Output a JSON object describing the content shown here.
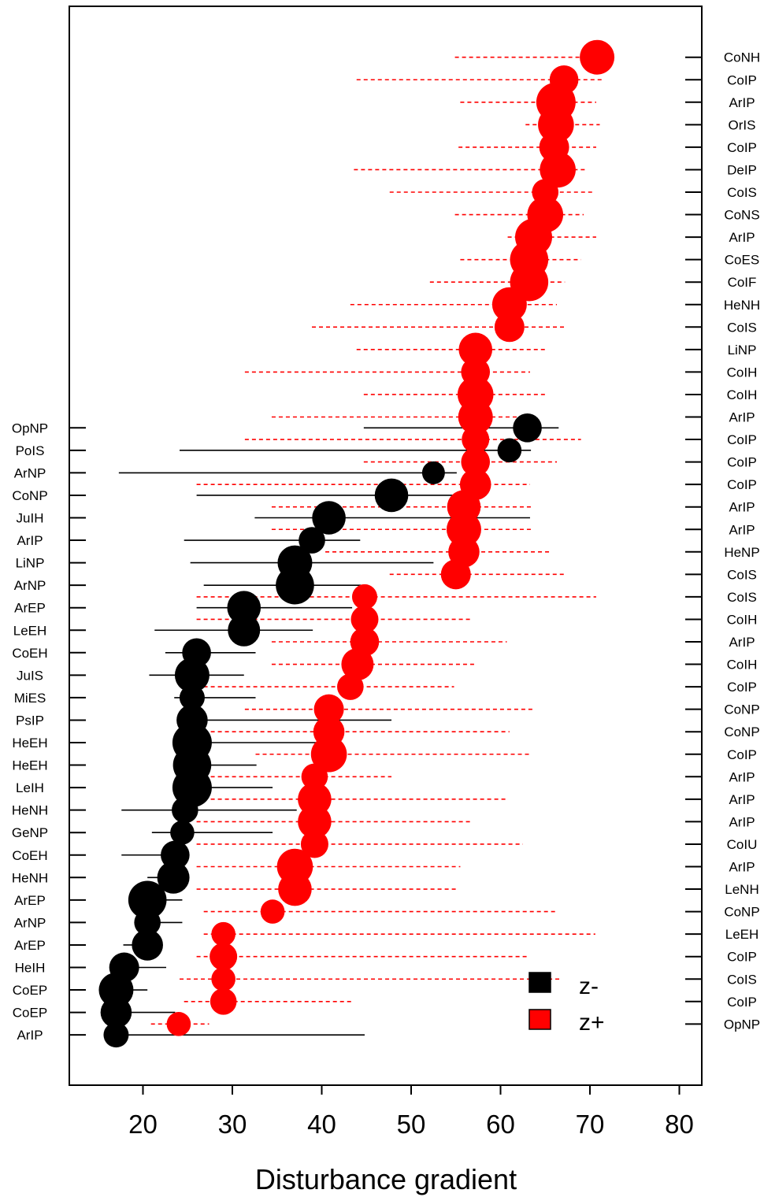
{
  "chart_data": {
    "type": "scatter",
    "xlabel": "Disturbance gradient",
    "xlim": [
      12,
      83
    ],
    "xticks": [
      20,
      30,
      40,
      50,
      60,
      70,
      80
    ],
    "colors": {
      "z_minus": "#000000",
      "z_plus": "#ff0000"
    },
    "legend": {
      "position": "bottom-right",
      "entries": [
        "z-",
        "z+"
      ]
    },
    "series": [
      {
        "name": "z-",
        "line_style": "solid",
        "points": [
          {
            "label": "OpNP",
            "x": 63.0,
            "lo": 44.7,
            "hi": 66.5,
            "size": 0.55
          },
          {
            "label": "PoIS",
            "x": 61.0,
            "lo": 24.1,
            "hi": 63.4,
            "size": 0.35
          },
          {
            "label": "ArNP",
            "x": 52.5,
            "lo": 17.3,
            "hi": 55.1,
            "size": 0.3
          },
          {
            "label": "CoNP",
            "x": 47.8,
            "lo": 26.0,
            "hi": 57.0,
            "size": 0.75
          },
          {
            "label": "JuIH",
            "x": 40.8,
            "lo": 32.5,
            "hi": 63.3,
            "size": 0.75
          },
          {
            "label": "ArIP",
            "x": 38.9,
            "lo": 24.6,
            "hi": 44.3,
            "size": 0.45
          },
          {
            "label": "LiNP",
            "x": 37.0,
            "lo": 25.3,
            "hi": 52.5,
            "size": 0.8
          },
          {
            "label": "ArNP",
            "x": 37.0,
            "lo": 26.8,
            "hi": 44.4,
            "size": 0.95
          },
          {
            "label": "ArEP",
            "x": 31.3,
            "lo": 26.0,
            "hi": 43.4,
            "size": 0.75
          },
          {
            "label": "LeEH",
            "x": 31.3,
            "lo": 21.3,
            "hi": 39.0,
            "size": 0.7
          },
          {
            "label": "CoEH",
            "x": 26.0,
            "lo": 22.5,
            "hi": 32.6,
            "size": 0.55
          },
          {
            "label": "JuIS",
            "x": 25.5,
            "lo": 20.7,
            "hi": 31.3,
            "size": 0.8
          },
          {
            "label": "MiES",
            "x": 25.5,
            "lo": 23.5,
            "hi": 32.6,
            "size": 0.4
          },
          {
            "label": "PsIP",
            "x": 25.5,
            "lo": 24.5,
            "hi": 47.8,
            "size": 0.65
          },
          {
            "label": "HeEH",
            "x": 25.5,
            "lo": 24.7,
            "hi": 39.6,
            "size": 1.0
          },
          {
            "label": "HeEH",
            "x": 25.5,
            "lo": 23.5,
            "hi": 32.7,
            "size": 0.95
          },
          {
            "label": "LeIH",
            "x": 25.5,
            "lo": 23.5,
            "hi": 34.5,
            "size": 1.0
          },
          {
            "label": "HeNH",
            "x": 24.7,
            "lo": 17.6,
            "hi": 37.2,
            "size": 0.45
          },
          {
            "label": "GeNP",
            "x": 24.4,
            "lo": 21.0,
            "hi": 34.5,
            "size": 0.35
          },
          {
            "label": "CoEH",
            "x": 23.6,
            "lo": 17.6,
            "hi": 24.4,
            "size": 0.55
          },
          {
            "label": "HeNH",
            "x": 23.4,
            "lo": 20.5,
            "hi": 24.6,
            "size": 0.7
          },
          {
            "label": "ArEP",
            "x": 20.5,
            "lo": 20.5,
            "hi": 24.4,
            "size": 0.95
          },
          {
            "label": "ArNP",
            "x": 20.5,
            "lo": 20.3,
            "hi": 24.4,
            "size": 0.45
          },
          {
            "label": "ArEP",
            "x": 20.5,
            "lo": 17.8,
            "hi": 20.5,
            "size": 0.65
          },
          {
            "label": "HeIH",
            "x": 17.9,
            "lo": 17.9,
            "hi": 22.6,
            "size": 0.6
          },
          {
            "label": "CoEP",
            "x": 17.0,
            "lo": 17.0,
            "hi": 20.5,
            "size": 0.8
          },
          {
            "label": "CoEP",
            "x": 17.0,
            "lo": 17.0,
            "hi": 23.6,
            "size": 0.65
          },
          {
            "label": "ArIP",
            "x": 17.0,
            "lo": 17.0,
            "hi": 44.8,
            "size": 0.4
          }
        ]
      },
      {
        "name": "z+",
        "line_style": "dashed",
        "points": [
          {
            "label": "CoNH",
            "x": 70.8,
            "lo": 54.9,
            "hi": 70.8,
            "size": 0.8
          },
          {
            "label": "CoIP",
            "x": 67.1,
            "lo": 43.9,
            "hi": 71.3,
            "size": 0.55
          },
          {
            "label": "ArIP",
            "x": 66.2,
            "lo": 55.5,
            "hi": 70.7,
            "size": 1.0
          },
          {
            "label": "OrIS",
            "x": 66.2,
            "lo": 62.8,
            "hi": 71.1,
            "size": 0.85
          },
          {
            "label": "CoIP",
            "x": 66.0,
            "lo": 55.3,
            "hi": 70.7,
            "size": 0.6
          },
          {
            "label": "DeIP",
            "x": 66.4,
            "lo": 43.6,
            "hi": 69.5,
            "size": 0.85
          },
          {
            "label": "CoIS",
            "x": 65.0,
            "lo": 47.6,
            "hi": 70.5,
            "size": 0.45
          },
          {
            "label": "CoNS",
            "x": 65.0,
            "lo": 54.9,
            "hi": 69.3,
            "size": 0.85
          },
          {
            "label": "ArIP",
            "x": 63.7,
            "lo": 60.8,
            "hi": 70.7,
            "size": 0.9
          },
          {
            "label": "CoES",
            "x": 63.2,
            "lo": 55.5,
            "hi": 69.0,
            "size": 0.95
          },
          {
            "label": "CoIF",
            "x": 63.2,
            "lo": 52.1,
            "hi": 67.2,
            "size": 0.95
          },
          {
            "label": "HeNH",
            "x": 61.0,
            "lo": 43.2,
            "hi": 66.3,
            "size": 0.8
          },
          {
            "label": "CoIS",
            "x": 61.0,
            "lo": 38.9,
            "hi": 67.2,
            "size": 0.6
          },
          {
            "label": "LiNP",
            "x": 57.2,
            "lo": 43.9,
            "hi": 65.0,
            "size": 0.75
          },
          {
            "label": "CoIH",
            "x": 57.2,
            "lo": 31.4,
            "hi": 63.3,
            "size": 0.55
          },
          {
            "label": "CoIH",
            "x": 57.2,
            "lo": 44.7,
            "hi": 65.0,
            "size": 0.85
          },
          {
            "label": "ArIP",
            "x": 57.2,
            "lo": 34.4,
            "hi": 63.3,
            "size": 0.8
          },
          {
            "label": "CoIP",
            "x": 57.2,
            "lo": 31.4,
            "hi": 69.0,
            "size": 0.5
          },
          {
            "label": "CoIP",
            "x": 57.2,
            "lo": 44.7,
            "hi": 66.3,
            "size": 0.55
          },
          {
            "label": "CoIP",
            "x": 57.2,
            "lo": 26.0,
            "hi": 63.3,
            "size": 0.65
          },
          {
            "label": "ArIP",
            "x": 55.9,
            "lo": 34.4,
            "hi": 63.4,
            "size": 0.75
          },
          {
            "label": "ArIP",
            "x": 55.9,
            "lo": 34.4,
            "hi": 63.4,
            "size": 0.8
          },
          {
            "label": "HeNP",
            "x": 55.9,
            "lo": 40.4,
            "hi": 65.5,
            "size": 0.65
          },
          {
            "label": "CoIS",
            "x": 55.0,
            "lo": 47.6,
            "hi": 67.2,
            "size": 0.6
          },
          {
            "label": "CoIS",
            "x": 44.8,
            "lo": 26.0,
            "hi": 70.7,
            "size": 0.4
          },
          {
            "label": "CoIH",
            "x": 44.8,
            "lo": 26.0,
            "hi": 56.8,
            "size": 0.5
          },
          {
            "label": "ArIP",
            "x": 44.8,
            "lo": 34.4,
            "hi": 60.7,
            "size": 0.55
          },
          {
            "label": "CoIH",
            "x": 44.0,
            "lo": 34.4,
            "hi": 57.3,
            "size": 0.7
          },
          {
            "label": "CoIP",
            "x": 43.2,
            "lo": 26.0,
            "hi": 54.8,
            "size": 0.45
          },
          {
            "label": "CoNP",
            "x": 40.8,
            "lo": 31.4,
            "hi": 63.6,
            "size": 0.6
          },
          {
            "label": "CoNP",
            "x": 40.8,
            "lo": 26.0,
            "hi": 61.0,
            "size": 0.65
          },
          {
            "label": "CoIP",
            "x": 40.8,
            "lo": 32.6,
            "hi": 63.4,
            "size": 0.85
          },
          {
            "label": "ArIP",
            "x": 39.2,
            "lo": 26.0,
            "hi": 47.8,
            "size": 0.45
          },
          {
            "label": "ArIP",
            "x": 39.2,
            "lo": 26.0,
            "hi": 60.7,
            "size": 0.75
          },
          {
            "label": "ArIP",
            "x": 39.2,
            "lo": 26.0,
            "hi": 56.8,
            "size": 0.75
          },
          {
            "label": "CoIU",
            "x": 39.2,
            "lo": 26.0,
            "hi": 62.5,
            "size": 0.5
          },
          {
            "label": "ArIP",
            "x": 37.0,
            "lo": 26.0,
            "hi": 55.5,
            "size": 0.85
          },
          {
            "label": "LeNH",
            "x": 37.0,
            "lo": 26.0,
            "hi": 55.0,
            "size": 0.75
          },
          {
            "label": "CoNP",
            "x": 34.5,
            "lo": 26.8,
            "hi": 66.2,
            "size": 0.35
          },
          {
            "label": "LeEH",
            "x": 29.0,
            "lo": 26.8,
            "hi": 70.6,
            "size": 0.35
          },
          {
            "label": "CoIP",
            "x": 29.0,
            "lo": 26.0,
            "hi": 63.2,
            "size": 0.5
          },
          {
            "label": "CoIS",
            "x": 29.0,
            "lo": 24.1,
            "hi": 66.8,
            "size": 0.35
          },
          {
            "label": "CoIP",
            "x": 29.0,
            "lo": 24.6,
            "hi": 43.4,
            "size": 0.45
          },
          {
            "label": "OpNP",
            "x": 24.0,
            "lo": 20.9,
            "hi": 27.4,
            "size": 0.35
          }
        ]
      }
    ]
  }
}
